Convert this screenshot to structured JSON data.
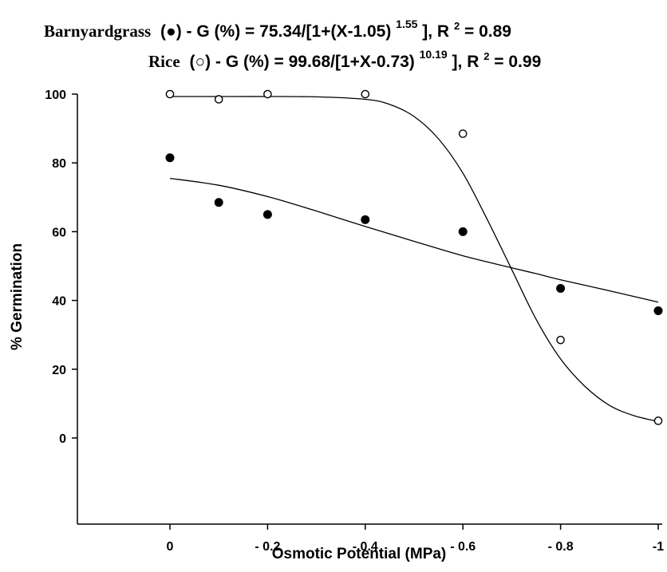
{
  "equations": {
    "barnyard": {
      "species": "Barnyardgrass",
      "symbol": "(●)",
      "main": " - G (%) = 75.34/[1+(X-1.05)",
      "exponent": "1.55",
      "tail": "], R",
      "r2_sup": "2",
      "r2_value": "= 0.89"
    },
    "rice": {
      "species": "Rice",
      "symbol": "(○)",
      "main": " - G (%) = 99.68/[1+X-0.73)",
      "exponent": "10.19",
      "tail": "], R",
      "r2_sup": "2",
      "r2_value": "= 0.99"
    }
  },
  "chart_data": {
    "type": "scatter",
    "xlabel": "Osmotic Potential (MPa)",
    "ylabel": "% Germination",
    "x_ticks": [
      {
        "value": 0,
        "label": "0"
      },
      {
        "value": -0.2,
        "label": "- 0.2"
      },
      {
        "value": -0.4,
        "label": "- 0.4"
      },
      {
        "value": -0.6,
        "label": "- 0.6"
      },
      {
        "value": -0.8,
        "label": "- 0.8"
      },
      {
        "value": -1,
        "label": "-1"
      }
    ],
    "y_ticks": [
      {
        "value": 0,
        "label": "0"
      },
      {
        "value": 20,
        "label": "20"
      },
      {
        "value": 40,
        "label": "40"
      },
      {
        "value": 60,
        "label": "60"
      },
      {
        "value": 80,
        "label": "80"
      },
      {
        "value": 100,
        "label": "100"
      }
    ],
    "xlim": [
      0.2,
      -1.0
    ],
    "ylim": [
      -25,
      100
    ],
    "grid": false,
    "series": [
      {
        "name": "Barnyardgrass",
        "marker": "filled-circle",
        "color": "#000000",
        "x": [
          0,
          -0.1,
          -0.2,
          -0.4,
          -0.6,
          -0.8,
          -1.0
        ],
        "y": [
          81.5,
          68.5,
          65,
          63.5,
          60,
          43.5,
          37
        ]
      },
      {
        "name": "Rice",
        "marker": "open-circle",
        "color": "#000000",
        "x": [
          0,
          -0.1,
          -0.2,
          -0.4,
          -0.6,
          -0.8,
          -1.0
        ],
        "y": [
          100,
          98.5,
          100,
          100,
          88.5,
          28.5,
          5
        ]
      }
    ],
    "fitted_curves": [
      {
        "name": "Barnyardgrass fit",
        "x": [
          0,
          -0.1,
          -0.2,
          -0.3,
          -0.4,
          -0.5,
          -0.6,
          -0.7,
          -0.75,
          -0.8,
          -0.9,
          -1.0
        ],
        "y": [
          75.5,
          73.5,
          70.2,
          66.0,
          61.5,
          57.2,
          53.0,
          49.5,
          47.8,
          46.0,
          42.8,
          39.5
        ]
      },
      {
        "name": "Rice fit",
        "x": [
          0,
          -0.1,
          -0.2,
          -0.3,
          -0.4,
          -0.45,
          -0.5,
          -0.55,
          -0.6,
          -0.65,
          -0.7,
          -0.75,
          -0.8,
          -0.85,
          -0.9,
          -0.95,
          -1.0
        ],
        "y": [
          99.3,
          99.3,
          99.3,
          99.2,
          98.5,
          97.0,
          93.5,
          87.0,
          77.0,
          63.5,
          49.0,
          34.5,
          23.0,
          15.0,
          9.5,
          6.5,
          4.8
        ]
      }
    ]
  }
}
